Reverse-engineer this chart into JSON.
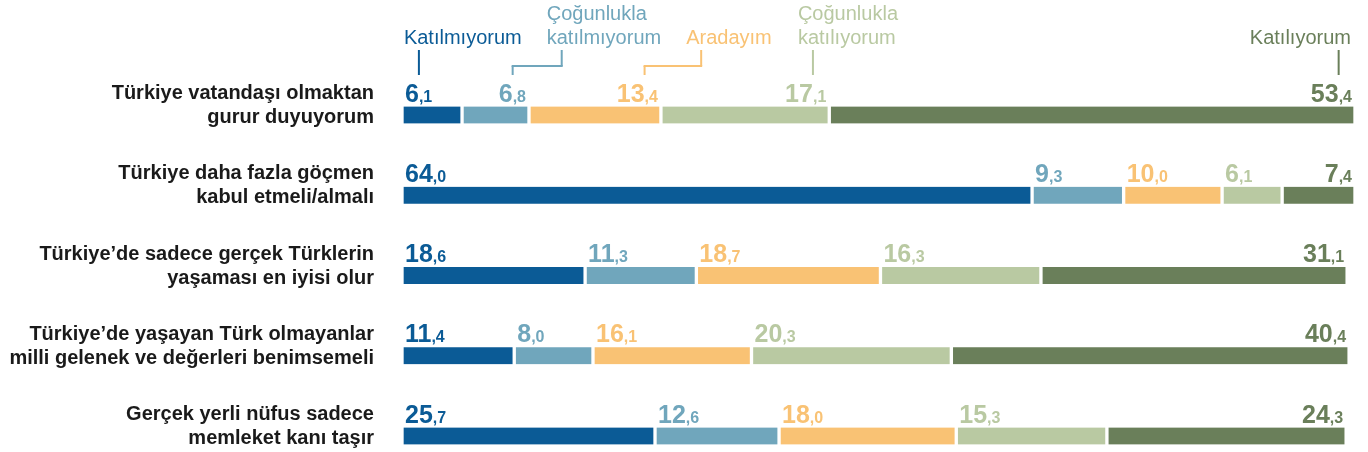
{
  "chart_data": {
    "type": "bar",
    "orientation": "horizontal",
    "stacked": true,
    "legend": "top",
    "tick_labels": "y",
    "categories": [
      "Türkiye vatandaşı olmaktan\ngurur duyuyorum",
      "Türkiye daha fazla göçmen\nkabul etmeli/almalı",
      "Türkiye’de sadece gerçek Türklerin\nyaşaması en iyisi olur",
      "Türkiye’de yaşayan Türk olmayanlar\nmilli gelenek ve değerleri benimsemeli",
      "Gerçek yerli nüfus sadece\nmemleket kanı taşır"
    ],
    "series": [
      {
        "name": "Katılmıyorum",
        "color": "#0b5b96",
        "values": [
          6.1,
          64.0,
          18.6,
          11.4,
          25.7
        ],
        "value_labels": [
          "6,1",
          "64,0",
          "18,6",
          "11,4",
          "25,7"
        ]
      },
      {
        "name": "Çoğunlukla katılmıyorum",
        "color": "#70a6bc",
        "values": [
          6.8,
          9.3,
          11.3,
          8.0,
          12.6
        ],
        "value_labels": [
          "6,8",
          "9,3",
          "11,3",
          "8,0",
          "12,6"
        ]
      },
      {
        "name": "Aradayım",
        "color": "#f9c274",
        "values": [
          13.4,
          10.0,
          18.7,
          16.1,
          18.0
        ],
        "value_labels": [
          "13,4",
          "10,0",
          "18,7",
          "16,1",
          "18,0"
        ]
      },
      {
        "name": "Çoğunlukla katılıyorum",
        "color": "#b9c9a2",
        "values": [
          17.1,
          6.1,
          16.3,
          20.3,
          15.3
        ],
        "value_labels": [
          "17,1",
          "6,1",
          "16,3",
          "20,3",
          "15,3"
        ]
      },
      {
        "name": "Katılıyorum",
        "color": "#6a7f5a",
        "values": [
          53.4,
          7.4,
          31.1,
          40.4,
          24.3
        ],
        "value_labels": [
          "53,4",
          "7,4",
          "31,1",
          "40,4",
          "24,3"
        ]
      }
    ]
  }
}
